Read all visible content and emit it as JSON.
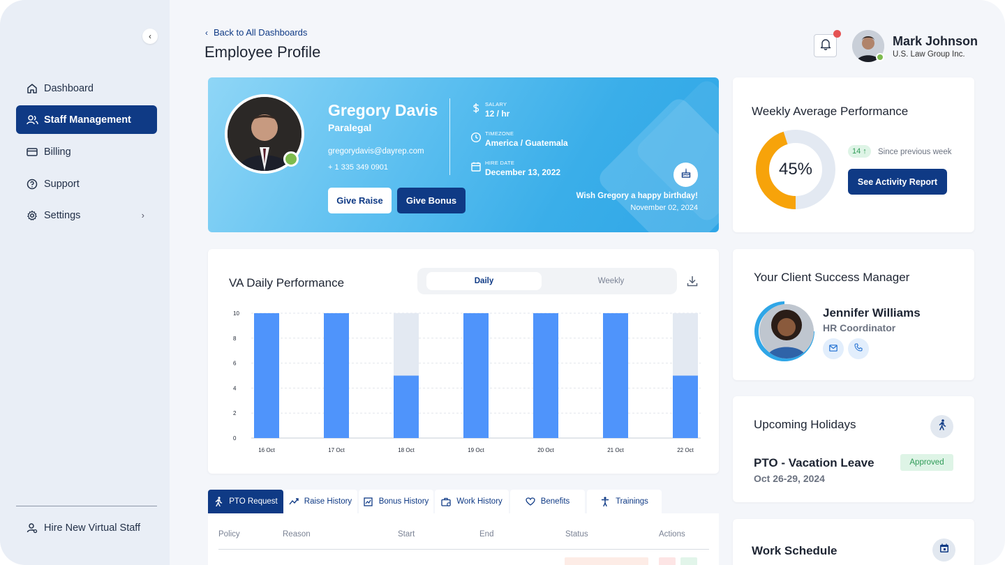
{
  "sidebar": {
    "items": [
      {
        "label": "Dashboard",
        "icon": "home-icon"
      },
      {
        "label": "Staff Management",
        "icon": "users-icon",
        "active": true
      },
      {
        "label": "Billing",
        "icon": "credit-card-icon"
      },
      {
        "label": "Support",
        "icon": "help-circle-icon"
      },
      {
        "label": "Settings",
        "icon": "gear-icon"
      }
    ],
    "footer_label": "Hire New Virtual Staff"
  },
  "header": {
    "back_label": "Back to All Dashboards",
    "title": "Employee Profile",
    "user_name": "Mark Johnson",
    "user_company": "U.S. Law Group Inc."
  },
  "profile": {
    "name": "Gregory Davis",
    "role": "Paralegal",
    "email": "gregorydavis@dayrep.com",
    "phone": "+ 1 335 349 0901",
    "raise_label": "Give Raise",
    "bonus_label": "Give Bonus",
    "salary_label": "SALARY",
    "salary_value": "12 / hr",
    "timezone_label": "TIMEZONE",
    "timezone_value": "America / Guatemala",
    "hire_label": "HIRE DATE",
    "hire_value": "December 13, 2022",
    "birthday_message": "Wish Gregory a happy birthday!",
    "birthday_date": "November 02, 2024"
  },
  "weekly_perf": {
    "title": "Weekly Average Performance",
    "percent_text": "45%",
    "percent": 45,
    "change_text": "14 ↑",
    "since_text": "Since previous week",
    "button_label": "See Activity Report",
    "colors": {
      "fill": "#f7a30a",
      "track": "#e3e9f2"
    }
  },
  "va_perf": {
    "title": "VA Daily Performance",
    "toggle_daily": "Daily",
    "toggle_weekly": "Weekly"
  },
  "chart_data": {
    "type": "bar",
    "categories": [
      "16 Oct",
      "17 Oct",
      "18 Oct",
      "19 Oct",
      "20 Oct",
      "21 Oct",
      "22 Oct"
    ],
    "values": [
      10,
      10,
      5,
      10,
      10,
      10,
      5
    ],
    "max_values": [
      10,
      10,
      10,
      10,
      10,
      10,
      10
    ],
    "yticks": [
      0,
      2,
      4,
      6,
      8,
      10
    ],
    "ylim": [
      0,
      10
    ],
    "grid": true,
    "colors": {
      "bar": "#4f94fb",
      "track": "#e3e9f2"
    }
  },
  "tabs": [
    {
      "label": "PTO Request",
      "icon": "walking-icon",
      "active": true
    },
    {
      "label": "Raise History",
      "icon": "trend-icon"
    },
    {
      "label": "Bonus History",
      "icon": "chart-box-icon"
    },
    {
      "label": "Work History",
      "icon": "briefcase-icon"
    },
    {
      "label": "Benefits",
      "icon": "heart-icon"
    },
    {
      "label": "Trainings",
      "icon": "trainer-icon"
    }
  ],
  "table": {
    "headers": [
      "Policy",
      "Reason",
      "Start",
      "End",
      "Status",
      "Actions"
    ]
  },
  "csm": {
    "title": "Your Client Success Manager",
    "name": "Jennifer Williams",
    "role": "HR Coordinator"
  },
  "holidays": {
    "title": "Upcoming Holidays",
    "item_title": "PTO - Vacation Leave",
    "item_dates": "Oct 26-29, 2024",
    "item_status": "Approved"
  },
  "schedule": {
    "title": "Work Schedule"
  },
  "colors": {
    "primary": "#0f3a85",
    "online": "#7dbb4e",
    "alert": "#e55353"
  }
}
